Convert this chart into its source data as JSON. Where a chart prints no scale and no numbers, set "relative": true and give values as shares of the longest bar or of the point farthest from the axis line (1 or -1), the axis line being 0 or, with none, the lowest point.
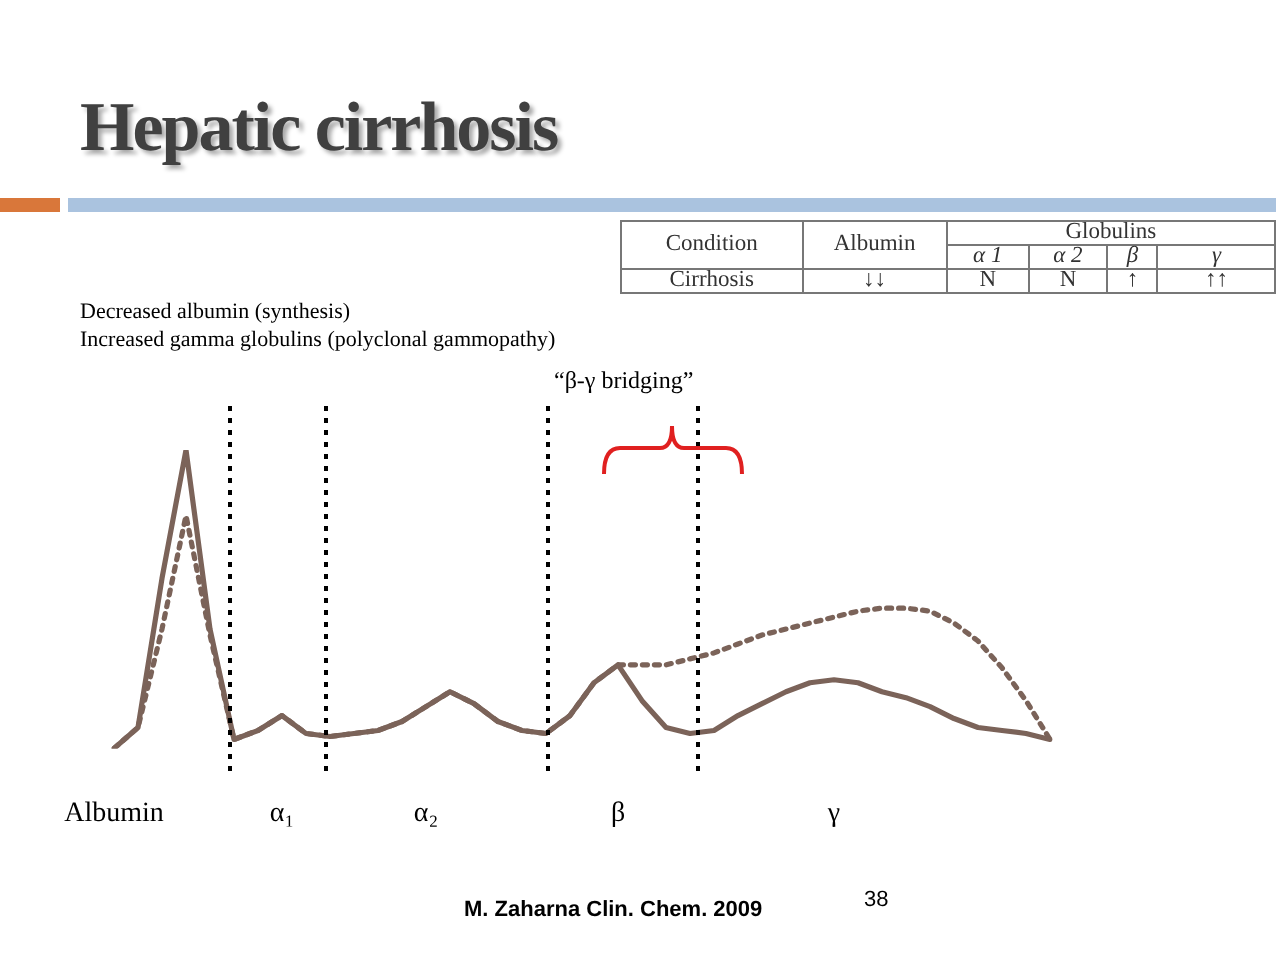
{
  "chart_data": {
    "type": "line",
    "title": "Hepatic cirrhosis",
    "relative": true,
    "tick_labels": "x",
    "legend": false,
    "marker": "none",
    "categories": [
      "Albumin",
      null,
      null,
      null,
      null,
      null,
      null,
      "α₁",
      null,
      null,
      null,
      null,
      null,
      "α₂",
      null,
      null,
      null,
      null,
      null,
      null,
      null,
      "β",
      null,
      null,
      null,
      null,
      null,
      null,
      null,
      null,
      "γ",
      null,
      null,
      null,
      null,
      null,
      null,
      null,
      null,
      null
    ],
    "series": [
      {
        "color": "#7b6359",
        "line_style": "solid",
        "values": [
          0,
          0.07,
          0.57,
          1,
          0.4,
          0.03,
          0.06,
          0.11,
          0.05,
          0.04,
          0.05,
          0.06,
          0.09,
          0.14,
          0.19,
          0.15,
          0.09,
          0.06,
          0.05,
          0.11,
          0.22,
          0.28,
          0.16,
          0.07,
          0.05,
          0.06,
          0.11,
          0.15,
          0.19,
          0.22,
          0.23,
          0.22,
          0.19,
          0.17,
          0.14,
          0.1,
          0.07,
          0.06,
          0.05,
          0.03
        ]
      },
      {
        "color": "#7b6359",
        "line_style": "dotted",
        "values": [
          0,
          0.07,
          0.4,
          0.78,
          0.38,
          0.03,
          0.06,
          0.11,
          0.05,
          0.04,
          0.05,
          0.06,
          0.09,
          0.14,
          0.19,
          0.15,
          0.09,
          0.06,
          0.05,
          0.11,
          0.22,
          0.28,
          0.28,
          0.28,
          0.3,
          0.32,
          0.35,
          0.38,
          0.4,
          0.42,
          0.44,
          0.46,
          0.47,
          0.47,
          0.46,
          0.42,
          0.36,
          0.27,
          0.16,
          0.03
        ]
      }
    ],
    "annotations": [
      "Decreased albumin (synthesis)",
      "Increased gamma globulins (polyclonal gammopathy)",
      "“β-γ bridging”",
      "M. Zaharna Clin. Chem. 2009",
      "38",
      "Condition",
      "Albumin",
      "Globulins",
      "α 1",
      "α 2",
      "β",
      "γ",
      "Cirrhosis",
      "↓↓",
      "N",
      "N",
      "↑",
      "↑↑"
    ]
  }
}
